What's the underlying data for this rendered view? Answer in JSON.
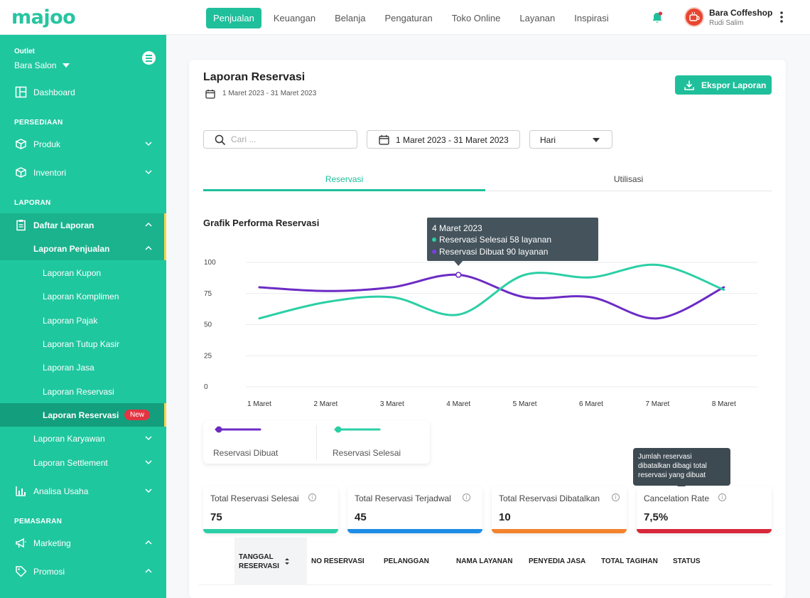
{
  "app": {
    "logo": "majoo",
    "nav": [
      "Penjualan",
      "Keuangan",
      "Belanja",
      "Pengaturan",
      "Toko Online",
      "Layanan",
      "Inspirasi"
    ],
    "user": {
      "name": "Bara Coffeshop",
      "sub": "Rudi Salim"
    }
  },
  "sidebar": {
    "outlet_label": "Outlet",
    "outlet_value": "Bara Salon",
    "dashboard": "Dashboard",
    "section_persediaan": "PERSEDIAAN",
    "produk": "Produk",
    "inventori": "Inventori",
    "section_laporan": "LAPORAN",
    "daftar_laporan": "Daftar Laporan",
    "laporan_penjualan": "Laporan Penjualan",
    "sub_items": [
      "Laporan Kupon",
      "Laporan Komplimen",
      "Laporan Pajak",
      "Laporan Tutup Kasir",
      "Laporan Jasa",
      "Laporan Reservasi"
    ],
    "active_item": "Laporan Reservasi",
    "badge": "New",
    "laporan_karyawan": "Laporan Karyawan",
    "laporan_settlement": "Laporan Settlement",
    "analisa_usaha": "Analisa Usaha",
    "section_pemasaran": "PEMASARAN",
    "marketing": "Marketing",
    "promosi": "Promosi"
  },
  "main": {
    "title": "Laporan Reservasi",
    "date_range": "1 Maret 2023 - 31 Maret 2023",
    "export_label": "Ekspor Laporan",
    "search_placeholder": "Cari ...",
    "date_filter": "1 Maret 2023 - 31 Maret 2023",
    "period": "Hari",
    "tabs": [
      "Reservasi",
      "Utilisasi"
    ],
    "chart_title": "Grafik Performa Reservasi",
    "tooltip": {
      "date": "4 Maret 2023",
      "line1": "Reservasi Selesai 58 layanan",
      "line2": "Reservasi Dibuat 90 layanan"
    },
    "legend": [
      "Reservasi Dibuat",
      "Reservasi Selesai"
    ],
    "kpi_tooltip": "Jumlah reservasi dibatalkan dibagi total reservasi yang dibuat",
    "kpis": [
      {
        "title": "Total Reservasi Selesai",
        "value": "75",
        "color": "#2bcfa5"
      },
      {
        "title": "Total Reservasi Terjadwal",
        "value": "45",
        "color": "#1d8de6"
      },
      {
        "title": "Total Reservasi Dibatalkan",
        "value": "10",
        "color": "#f3832c"
      },
      {
        "title": "Cancelation Rate",
        "value": "7,5%",
        "color": "#d8283b"
      }
    ],
    "table_headers": [
      "TANGGAL RESERVASI",
      "NO RESERVASI",
      "PELANGGAN",
      "NAMA LAYANAN",
      "PENYEDIA JASA",
      "TOTAL TAGIHAN",
      "STATUS"
    ],
    "table_header_first_line1": "TANGGAL",
    "table_header_first_line2": "RESERVASI"
  },
  "colors": {
    "primary": "#1fc79f",
    "dibuat": "#6c2bc4",
    "selesai": "#2bcfa5"
  },
  "chart_data": {
    "type": "line",
    "categories": [
      "1 Maret",
      "2 Maret",
      "3 Maret",
      "4 Maret",
      "5 Maret",
      "6 Maret",
      "7 Maret",
      "8 Maret"
    ],
    "ylim": [
      0,
      100
    ],
    "yticks": [
      0,
      25,
      50,
      75,
      100
    ],
    "series": [
      {
        "name": "Reservasi Dibuat",
        "color": "#6c2bc4",
        "values": [
          80,
          77,
          80,
          90,
          72,
          72,
          55,
          80
        ]
      },
      {
        "name": "Reservasi Selesai",
        "color": "#2bcfa5",
        "values": [
          55,
          68,
          72,
          58,
          90,
          88,
          98,
          78
        ]
      }
    ]
  }
}
